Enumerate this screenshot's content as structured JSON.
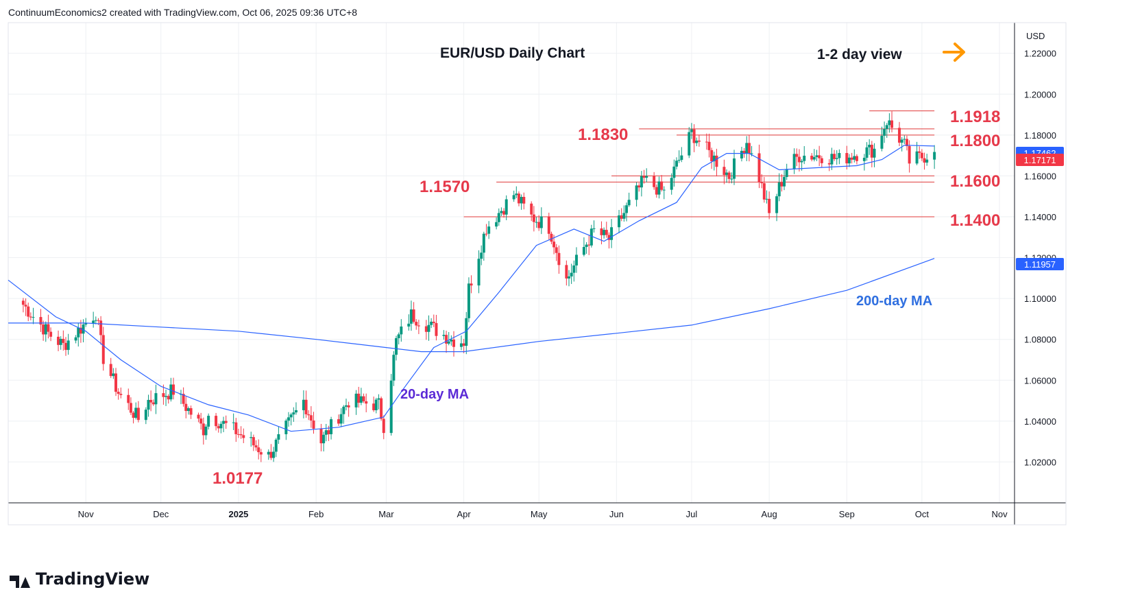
{
  "header": {
    "attribution": "ContinuumEconomics2 created with TradingView.com, Oct 06, 2025 09:36 UTC+8"
  },
  "footer": {
    "brand": "TradingView"
  },
  "colors": {
    "up": "#089981",
    "down": "#f23645",
    "ma": "#2962ff",
    "level_line": "#e03a3a",
    "level_text": "#e6394a",
    "arrow": "#ff9800",
    "ma20_label": "#5b2bd6",
    "ma200_label": "#2f6fe0",
    "grid": "#eef0f3",
    "text": "#131722"
  },
  "chart_data": {
    "type": "candlestick",
    "title": "EUR/USD Daily Chart",
    "subtitle": "1-2 day view",
    "icon": "arrow-right-icon",
    "currency": "USD",
    "ylim": [
      1.0,
      1.235
    ],
    "y_ticks": [
      "1.22000",
      "1.20000",
      "1.18000",
      "1.16000",
      "1.14000",
      "1.12000",
      "1.10000",
      "1.08000",
      "1.06000",
      "1.04000",
      "1.02000"
    ],
    "x_ticks": [
      {
        "label": "Nov",
        "date": "2024-11-01",
        "bold": false
      },
      {
        "label": "Dec",
        "date": "2024-12-01",
        "bold": false
      },
      {
        "label": "2025",
        "date": "2025-01-01",
        "bold": true
      },
      {
        "label": "Feb",
        "date": "2025-02-01",
        "bold": false
      },
      {
        "label": "Mar",
        "date": "2025-03-01",
        "bold": false
      },
      {
        "label": "Apr",
        "date": "2025-04-01",
        "bold": false
      },
      {
        "label": "May",
        "date": "2025-05-01",
        "bold": false
      },
      {
        "label": "Jun",
        "date": "2025-06-01",
        "bold": false
      },
      {
        "label": "Jul",
        "date": "2025-07-01",
        "bold": false
      },
      {
        "label": "Aug",
        "date": "2025-08-01",
        "bold": false
      },
      {
        "label": "Sep",
        "date": "2025-09-01",
        "bold": false
      },
      {
        "label": "Oct",
        "date": "2025-10-01",
        "bold": false
      },
      {
        "label": "Nov",
        "date": "2025-11-01",
        "bold": false
      }
    ],
    "price_badges": [
      {
        "label": "1.17462",
        "value": 1.1746,
        "color": "#2962ff"
      },
      {
        "label": "1.17171",
        "value": 1.1717,
        "color": "#f23645"
      },
      {
        "label": "1.11957",
        "value": 1.1196,
        "color": "#2962ff"
      }
    ],
    "levels": [
      {
        "label": "1.1918",
        "value": 1.1918,
        "from": "2025-09-10",
        "to": "2025-10-06"
      },
      {
        "label": "1.1830",
        "value": 1.183,
        "from": "2025-06-10",
        "to": "2025-10-06"
      },
      {
        "label": "1.1800",
        "value": 1.18,
        "from": "2025-06-25",
        "to": "2025-10-06"
      },
      {
        "label": "1.1600",
        "value": 1.16,
        "from": "2025-05-30",
        "to": "2025-10-06"
      },
      {
        "label": "1.1570",
        "value": 1.157,
        "from": "2025-04-14",
        "to": "2025-10-06"
      },
      {
        "label": "1.1400",
        "value": 1.14,
        "from": "2025-04-01",
        "to": "2025-10-06"
      }
    ],
    "annotations": [
      {
        "label": "1.0177",
        "date": "2025-01-13",
        "value": 1.0177
      },
      {
        "label": "20-day MA",
        "series": "ma20"
      },
      {
        "label": "200-day MA",
        "series": "ma200"
      }
    ],
    "series": [
      {
        "name": "EUR/USD",
        "kind": "candle",
        "anchors": [
          [
            "2024-10-07",
            1.097
          ],
          [
            "2024-10-17",
            1.083
          ],
          [
            "2024-10-23",
            1.077
          ],
          [
            "2024-11-01",
            1.088
          ],
          [
            "2024-11-05",
            1.093
          ],
          [
            "2024-11-08",
            1.071
          ],
          [
            "2024-11-14",
            1.054
          ],
          [
            "2024-11-22",
            1.041
          ],
          [
            "2024-11-26",
            1.05
          ],
          [
            "2024-12-06",
            1.055
          ],
          [
            "2024-12-18",
            1.036
          ],
          [
            "2024-12-20",
            1.043
          ],
          [
            "2024-12-31",
            1.035
          ],
          [
            "2025-01-13",
            1.023
          ],
          [
            "2025-01-27",
            1.05
          ],
          [
            "2025-02-03",
            1.03
          ],
          [
            "2025-02-14",
            1.05
          ],
          [
            "2025-02-26",
            1.048
          ],
          [
            "2025-02-28",
            1.038
          ],
          [
            "2025-03-05",
            1.079
          ],
          [
            "2025-03-11",
            1.092
          ],
          [
            "2025-03-27",
            1.08
          ],
          [
            "2025-04-01",
            1.079
          ],
          [
            "2025-04-03",
            1.105
          ],
          [
            "2025-04-10",
            1.135
          ],
          [
            "2025-04-11",
            1.136
          ],
          [
            "2025-04-21",
            1.151
          ],
          [
            "2025-04-28",
            1.14
          ],
          [
            "2025-05-05",
            1.135
          ],
          [
            "2025-05-12",
            1.109
          ],
          [
            "2025-05-19",
            1.125
          ],
          [
            "2025-05-23",
            1.133
          ],
          [
            "2025-05-29",
            1.129
          ],
          [
            "2025-06-05",
            1.144
          ],
          [
            "2025-06-12",
            1.158
          ],
          [
            "2025-06-20",
            1.152
          ],
          [
            "2025-07-01",
            1.181
          ],
          [
            "2025-07-04",
            1.177
          ],
          [
            "2025-07-16",
            1.16
          ],
          [
            "2025-07-23",
            1.177
          ],
          [
            "2025-07-28",
            1.159
          ],
          [
            "2025-08-01",
            1.141
          ],
          [
            "2025-08-08",
            1.164
          ],
          [
            "2025-08-13",
            1.17
          ],
          [
            "2025-08-22",
            1.17
          ],
          [
            "2025-08-29",
            1.168
          ],
          [
            "2025-09-05",
            1.171
          ],
          [
            "2025-09-12",
            1.173
          ],
          [
            "2025-09-17",
            1.187
          ],
          [
            "2025-09-24",
            1.175
          ],
          [
            "2025-09-26",
            1.167
          ],
          [
            "2025-10-06",
            1.1717
          ]
        ]
      },
      {
        "name": "20-day MA",
        "kind": "line",
        "points": [
          [
            "2024-10-01",
            1.109
          ],
          [
            "2024-10-20",
            1.091
          ],
          [
            "2024-11-01",
            1.084
          ],
          [
            "2024-11-15",
            1.07
          ],
          [
            "2024-12-01",
            1.057
          ],
          [
            "2024-12-20",
            1.048
          ],
          [
            "2025-01-05",
            1.043
          ],
          [
            "2025-01-22",
            1.035
          ],
          [
            "2025-02-10",
            1.037
          ],
          [
            "2025-02-28",
            1.042
          ],
          [
            "2025-03-08",
            1.056
          ],
          [
            "2025-03-20",
            1.076
          ],
          [
            "2025-04-02",
            1.084
          ],
          [
            "2025-04-15",
            1.103
          ],
          [
            "2025-04-30",
            1.126
          ],
          [
            "2025-05-15",
            1.134
          ],
          [
            "2025-05-27",
            1.128
          ],
          [
            "2025-06-10",
            1.138
          ],
          [
            "2025-06-25",
            1.147
          ],
          [
            "2025-07-05",
            1.164
          ],
          [
            "2025-07-15",
            1.171
          ],
          [
            "2025-07-24",
            1.171
          ],
          [
            "2025-08-05",
            1.163
          ],
          [
            "2025-08-20",
            1.164
          ],
          [
            "2025-09-05",
            1.165
          ],
          [
            "2025-09-15",
            1.168
          ],
          [
            "2025-09-24",
            1.175
          ],
          [
            "2025-10-06",
            1.1746
          ]
        ]
      },
      {
        "name": "200-day MA",
        "kind": "line",
        "points": [
          [
            "2024-10-01",
            1.088
          ],
          [
            "2024-11-01",
            1.088
          ],
          [
            "2024-12-01",
            1.086
          ],
          [
            "2025-01-01",
            1.084
          ],
          [
            "2025-02-01",
            1.08
          ],
          [
            "2025-03-01",
            1.076
          ],
          [
            "2025-03-15",
            1.074
          ],
          [
            "2025-04-01",
            1.074
          ],
          [
            "2025-05-01",
            1.079
          ],
          [
            "2025-06-01",
            1.083
          ],
          [
            "2025-07-01",
            1.087
          ],
          [
            "2025-08-01",
            1.095
          ],
          [
            "2025-09-01",
            1.104
          ],
          [
            "2025-10-06",
            1.1196
          ]
        ]
      }
    ]
  }
}
